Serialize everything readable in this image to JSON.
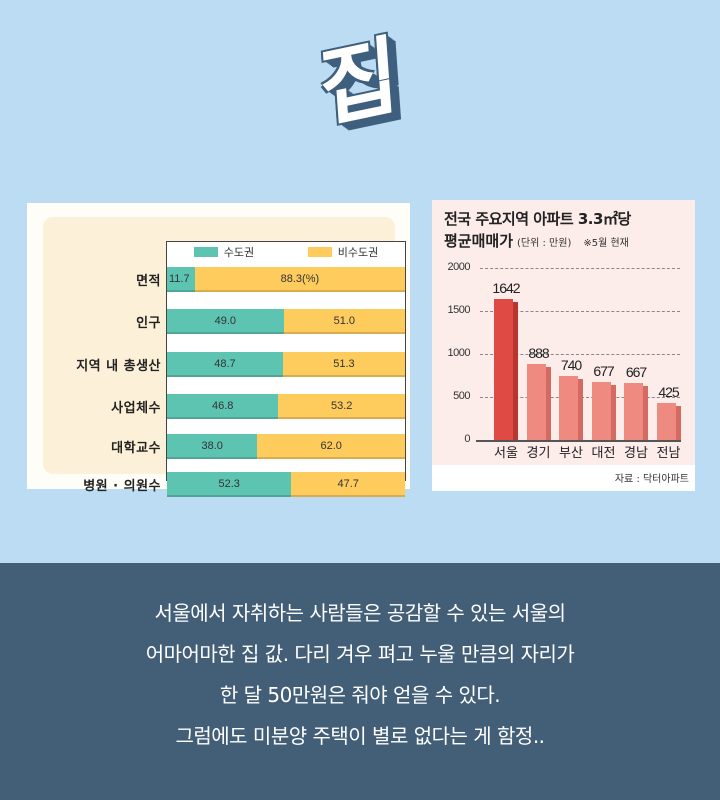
{
  "header": {
    "title": "집"
  },
  "left_chart": {
    "legend": [
      {
        "label": "수도권",
        "color": "#5dc4b1"
      },
      {
        "label": "비수도권",
        "color": "#fecb5d"
      }
    ],
    "rows": [
      {
        "label": "면적",
        "a": 11.7,
        "a_text": "11.7",
        "b": 88.3,
        "b_text": "88.3(%)"
      },
      {
        "label": "인구",
        "a": 49.0,
        "a_text": "49.0",
        "b": 51.0,
        "b_text": "51.0"
      },
      {
        "label": "지역 내 총생산",
        "a": 48.7,
        "a_text": "48.7",
        "b": 51.3,
        "b_text": "51.3"
      },
      {
        "label": "사업체수",
        "a": 46.8,
        "a_text": "46.8",
        "b": 53.2,
        "b_text": "53.2"
      },
      {
        "label": "대학교수",
        "a": 38.0,
        "a_text": "38.0",
        "b": 62.0,
        "b_text": "62.0"
      },
      {
        "label": "병원 · 의원수",
        "a": 52.3,
        "a_text": "52.3",
        "b": 47.7,
        "b_text": "47.7"
      }
    ]
  },
  "right_chart": {
    "title_line1": "전국 주요지역 아파트 3.3㎡당",
    "title_line2": "평균매매가",
    "unit": "(단위 : 만원)",
    "note": "※5월 현재",
    "y_ticks": [
      "2000",
      "1500",
      "1000",
      "500",
      "0"
    ],
    "bars": [
      {
        "label": "서울",
        "value": 1642,
        "text": "1642",
        "color": "#e04a45",
        "side": "#b83530"
      },
      {
        "label": "경기",
        "value": 888,
        "text": "888",
        "color": "#ef8a80",
        "side": "#d46a62"
      },
      {
        "label": "부산",
        "value": 740,
        "text": "740",
        "color": "#ef8a80",
        "side": "#d46a62"
      },
      {
        "label": "대전",
        "value": 677,
        "text": "677",
        "color": "#ef8a80",
        "side": "#d46a62"
      },
      {
        "label": "경남",
        "value": 667,
        "text": "667",
        "color": "#ef8a80",
        "side": "#d46a62"
      },
      {
        "label": "전남",
        "value": 425,
        "text": "425",
        "color": "#ef8a80",
        "side": "#d46a62"
      }
    ],
    "source": "자료 : 닥터아파트"
  },
  "caption": {
    "lines": [
      "서울에서 자취하는 사람들은 공감할 수 있는 서울의",
      "어마어마한 집 값. 다리 겨우 펴고 누울 만큼의 자리가",
      "한 달 50만원은 줘야 얻을 수 있다.",
      "그럼에도 미분양 주택이 별로 없다는 게 함정.."
    ]
  },
  "colors": {
    "background": "#bcdcf3",
    "caption_bg": "#435f78",
    "capital": "#5dc4b1",
    "non_capital": "#fecb5d"
  },
  "chart_data": [
    {
      "type": "bar",
      "orientation": "horizontal-stacked",
      "title": "",
      "categories": [
        "면적",
        "인구",
        "지역 내 총생산",
        "사업체수",
        "대학교수",
        "병원 · 의원수"
      ],
      "series": [
        {
          "name": "수도권",
          "values": [
            11.7,
            49.0,
            48.7,
            46.8,
            38.0,
            52.3
          ]
        },
        {
          "name": "비수도권",
          "values": [
            88.3,
            51.0,
            51.3,
            53.2,
            62.0,
            47.7
          ]
        }
      ],
      "unit": "%",
      "legend_position": "top",
      "xlim": [
        0,
        100
      ]
    },
    {
      "type": "bar",
      "title": "전국 주요지역 아파트 3.3㎡당 평균매매가",
      "subtitle": "(단위 : 만원) ※5월 현재",
      "categories": [
        "서울",
        "경기",
        "부산",
        "대전",
        "경남",
        "전남"
      ],
      "values": [
        1642,
        888,
        740,
        677,
        667,
        425
      ],
      "xlabel": "",
      "ylabel": "",
      "ylim": [
        0,
        2000
      ],
      "y_ticks": [
        0,
        500,
        1000,
        1500,
        2000
      ],
      "grid": true,
      "source": "자료 : 닥터아파트"
    }
  ]
}
